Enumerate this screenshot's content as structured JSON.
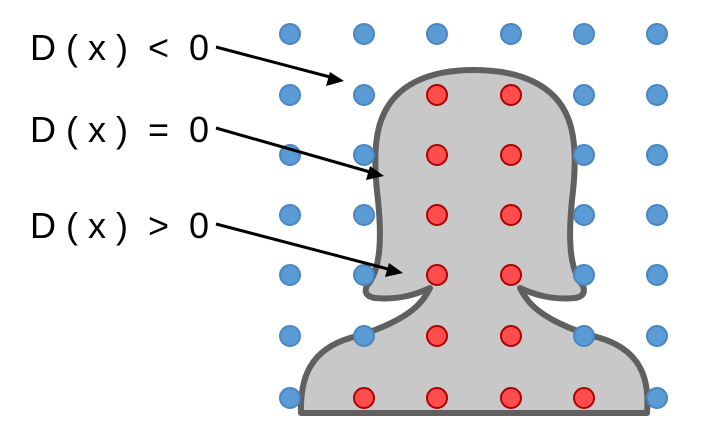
{
  "labels": {
    "outside": "D ( x )  <  0",
    "boundary": "D ( x )  =  0",
    "inside": "D ( x )  >  0"
  },
  "colors": {
    "outside_point_fill": "#5b9bd5",
    "outside_point_stroke": "#4a86c0",
    "inside_point_fill": "#ff4d4d",
    "inside_point_stroke": "#b00000",
    "shape_fill": "#c8c8c8",
    "shape_stroke": "#606060",
    "arrow": "#000000"
  },
  "grid": {
    "columns": 6,
    "rows": 7,
    "inside_points": [
      [
        1,
        2
      ],
      [
        1,
        3
      ],
      [
        2,
        2
      ],
      [
        2,
        3
      ],
      [
        3,
        2
      ],
      [
        3,
        3
      ],
      [
        4,
        2
      ],
      [
        4,
        3
      ],
      [
        5,
        2
      ],
      [
        5,
        3
      ],
      [
        6,
        1
      ],
      [
        6,
        2
      ],
      [
        6,
        3
      ],
      [
        6,
        4
      ]
    ]
  }
}
